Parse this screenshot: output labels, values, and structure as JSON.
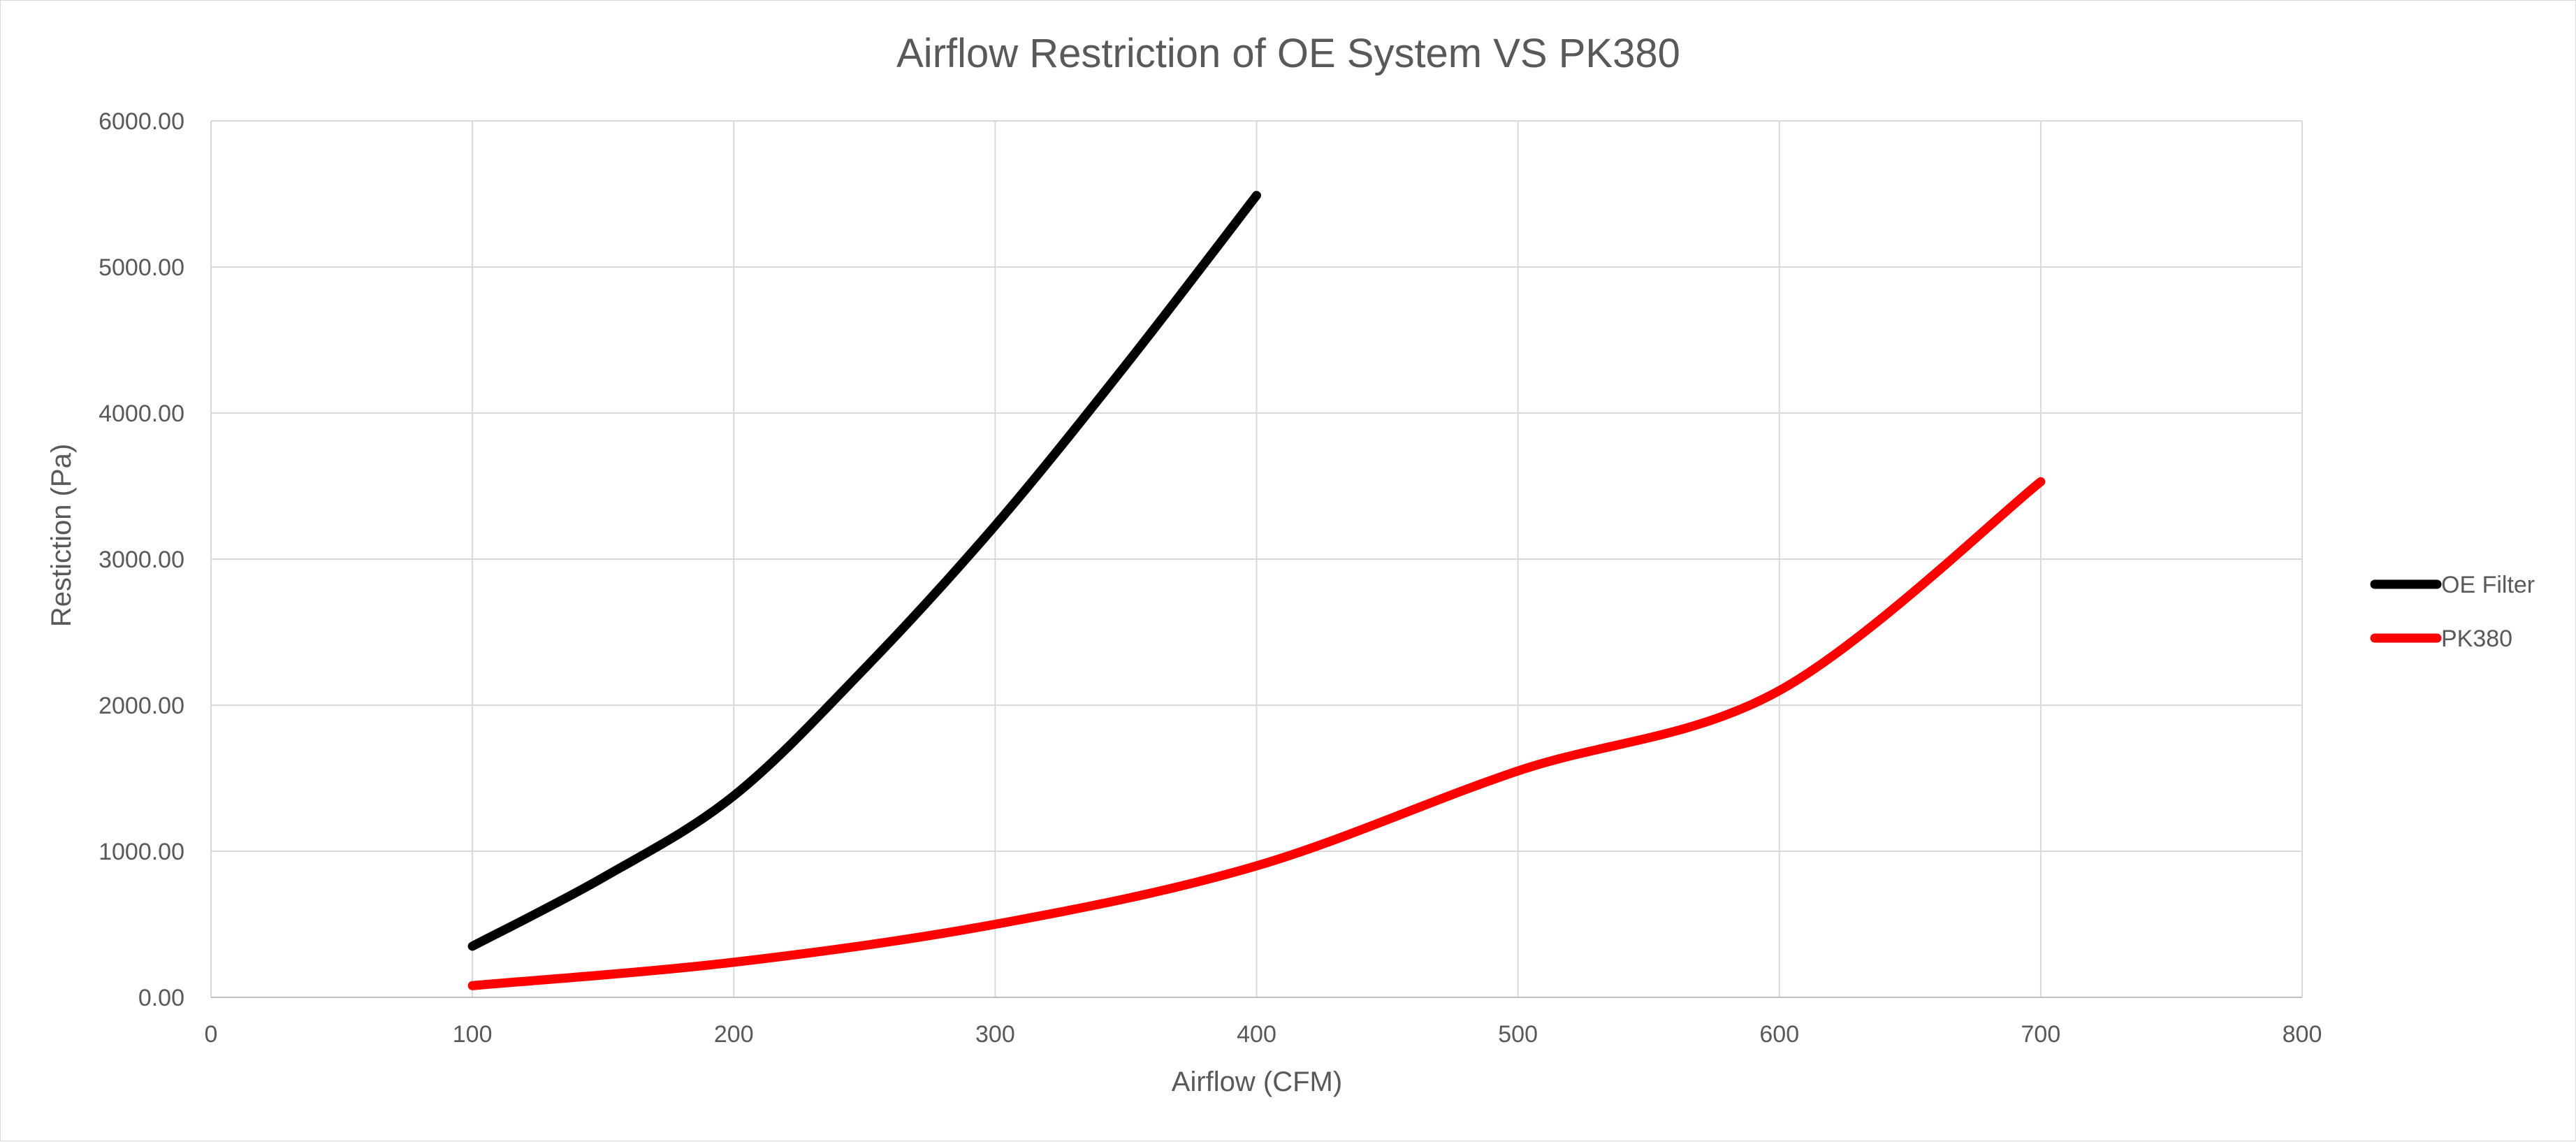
{
  "chart_data": {
    "type": "line",
    "title": "Airflow Restriction of OE System VS PK380",
    "xlabel": "Airflow (CFM)",
    "ylabel": "Restiction (Pa)",
    "xlim": [
      0,
      800
    ],
    "ylim": [
      0,
      6000
    ],
    "x_ticks": [
      "0",
      "100",
      "200",
      "300",
      "400",
      "500",
      "600",
      "700",
      "800"
    ],
    "y_ticks": [
      "0.00",
      "1000.00",
      "2000.00",
      "3000.00",
      "4000.00",
      "5000.00",
      "6000.00"
    ],
    "grid": true,
    "legend_position": "right",
    "smooth": true,
    "series": [
      {
        "name": "OE Filter",
        "color": "#000000",
        "x": [
          100,
          150,
          200,
          250,
          300,
          350,
          400
        ],
        "y": [
          350,
          820,
          1380,
          2250,
          3230,
          4330,
          5490
        ]
      },
      {
        "name": "PK380",
        "color": "#ff0000",
        "x": [
          100,
          200,
          300,
          400,
          500,
          600,
          700
        ],
        "y": [
          80,
          240,
          500,
          900,
          1550,
          2100,
          3530
        ]
      }
    ]
  }
}
